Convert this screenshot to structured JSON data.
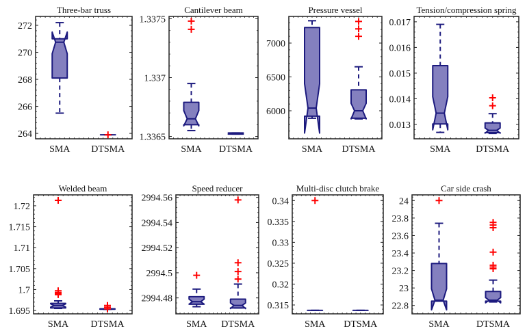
{
  "colors": {
    "box_fill": "#8480bf",
    "box_stroke": "#1c1a7e",
    "outlier": "#ff0000",
    "axis": "#222222"
  },
  "chart_data": [
    {
      "type": "box",
      "title": "Three-bar truss",
      "categories": [
        "SMA",
        "DTSMA"
      ],
      "ylim": [
        263.6,
        272.66
      ],
      "yticks": [
        264,
        266,
        268,
        270,
        272
      ],
      "yticklabels": [
        "264",
        "266",
        "268",
        "270",
        "272"
      ],
      "series": [
        {
          "name": "SMA",
          "whisker_low": 265.5,
          "q1": 268.1,
          "median": 270.75,
          "q3": 271.0,
          "whisker_high": 272.2,
          "notch_low": 269.9,
          "notch_high": 271.5,
          "outliers": []
        },
        {
          "name": "DTSMA",
          "whisker_low": 263.9,
          "q1": 263.9,
          "median": 263.9,
          "q3": 263.9,
          "whisker_high": 263.9,
          "notch_low": 263.9,
          "notch_high": 263.9,
          "outliers": [
            263.9
          ]
        }
      ]
    },
    {
      "type": "box",
      "title": "Cantilever beam",
      "categories": [
        "SMA",
        "DTSMA"
      ],
      "ylim": [
        1.33648,
        1.33752
      ],
      "yticks": [
        1.3365,
        1.337,
        1.3375
      ],
      "yticklabels": [
        "1.3365",
        "1.337",
        "1.3375"
      ],
      "series": [
        {
          "name": "SMA",
          "whisker_low": 1.33655,
          "q1": 1.3366,
          "median": 1.33665,
          "q3": 1.33679,
          "whisker_high": 1.33695,
          "notch_low": 1.33659,
          "notch_high": 1.33672,
          "outliers": [
            1.33748,
            1.33741
          ]
        },
        {
          "name": "DTSMA",
          "whisker_low": 1.33652,
          "q1": 1.33652,
          "median": 1.336525,
          "q3": 1.33653,
          "whisker_high": 1.33653,
          "notch_low": 1.33652,
          "notch_high": 1.33653,
          "outliers": []
        }
      ]
    },
    {
      "type": "box",
      "title": "Pressure vessel",
      "categories": [
        "SMA",
        "DTSMA"
      ],
      "ylim": [
        5586,
        7394
      ],
      "yticks": [
        6000,
        6500,
        7000
      ],
      "yticklabels": [
        "6000",
        "6500",
        "7000"
      ],
      "series": [
        {
          "name": "SMA",
          "whisker_low": 5890,
          "q1": 5920,
          "median": 6040,
          "q3": 7230,
          "whisker_high": 7330,
          "notch_low": 5670,
          "notch_high": 6400,
          "outliers": []
        },
        {
          "name": "DTSMA",
          "whisker_low": 5880,
          "q1": 5890,
          "median": 6000,
          "q3": 6310,
          "whisker_high": 6650,
          "notch_low": 5880,
          "notch_high": 6110,
          "outliers": [
            7320,
            7210,
            7100
          ]
        }
      ]
    },
    {
      "type": "box",
      "title": "Tension/compression spring",
      "categories": [
        "SMA",
        "DTSMA"
      ],
      "ylim": [
        0.01244,
        0.01721
      ],
      "yticks": [
        0.013,
        0.014,
        0.015,
        0.016,
        0.017
      ],
      "yticklabels": [
        "0.013",
        "0.014",
        "0.015",
        "0.016",
        "0.017"
      ],
      "series": [
        {
          "name": "SMA",
          "whisker_low": 0.01269,
          "q1": 0.01302,
          "median": 0.01344,
          "q3": 0.01529,
          "whisker_high": 0.0169,
          "notch_low": 0.01279,
          "notch_high": 0.01408,
          "outliers": []
        },
        {
          "name": "DTSMA",
          "whisker_low": 0.01265,
          "q1": 0.01268,
          "median": 0.01277,
          "q3": 0.01306,
          "whisker_high": 0.01342,
          "notch_low": 0.01266,
          "notch_high": 0.01286,
          "outliers": [
            0.01404,
            0.01373
          ]
        }
      ]
    },
    {
      "type": "box",
      "title": "Welded beam",
      "categories": [
        "SMA",
        "DTSMA"
      ],
      "ylim": [
        1.6942,
        1.7226
      ],
      "yticks": [
        1.695,
        1.7,
        1.705,
        1.71,
        1.715,
        1.72
      ],
      "yticklabels": [
        "1.695",
        "1.7",
        "1.705",
        "1.71",
        "1.715",
        "1.72"
      ],
      "series": [
        {
          "name": "SMA",
          "whisker_low": 1.6955,
          "q1": 1.6956,
          "median": 1.6962,
          "q3": 1.6967,
          "whisker_high": 1.6973,
          "notch_low": 1.6958,
          "notch_high": 1.6966,
          "outliers": [
            1.7213,
            1.6997,
            1.6993,
            1.699,
            1.6988
          ]
        },
        {
          "name": "DTSMA",
          "whisker_low": 1.6953,
          "q1": 1.6953,
          "median": 1.6953,
          "q3": 1.6954,
          "whisker_high": 1.6954,
          "notch_low": 1.6953,
          "notch_high": 1.6954,
          "outliers": [
            1.6962,
            1.6958,
            1.6954
          ]
        }
      ]
    },
    {
      "type": "box",
      "title": "Speed reducer",
      "categories": [
        "SMA",
        "DTSMA"
      ],
      "ylim": [
        2994.4673,
        2994.562
      ],
      "yticks": [
        2994.48,
        2994.5,
        2994.52,
        2994.54,
        2994.56
      ],
      "yticklabels": [
        "2994.48",
        "2994.5",
        "2994.52",
        "2994.54",
        "2994.56"
      ],
      "series": [
        {
          "name": "SMA",
          "whisker_low": 2994.473,
          "q1": 2994.475,
          "median": 2994.477,
          "q3": 2994.481,
          "whisker_high": 2994.487,
          "notch_low": 2994.475,
          "notch_high": 2994.479,
          "outliers": [
            2994.498
          ]
        },
        {
          "name": "DTSMA",
          "whisker_low": 2994.472,
          "q1": 2994.472,
          "median": 2994.474,
          "q3": 2994.479,
          "whisker_high": 2994.491,
          "notch_low": 2994.4715,
          "notch_high": 2994.476,
          "outliers": [
            2994.558,
            2994.508,
            2994.501,
            2994.495
          ]
        }
      ]
    },
    {
      "type": "box",
      "title": "Multi-disc clutch brake",
      "categories": [
        "SMA",
        "DTSMA"
      ],
      "ylim": [
        0.31287,
        0.34136
      ],
      "yticks": [
        0.315,
        0.32,
        0.325,
        0.33,
        0.335,
        0.34
      ],
      "yticklabels": [
        "0.315",
        "0.32",
        "0.325",
        "0.33",
        "0.335",
        "0.34"
      ],
      "series": [
        {
          "name": "SMA",
          "whisker_low": 0.3137,
          "q1": 0.3137,
          "median": 0.3137,
          "q3": 0.3137,
          "whisker_high": 0.3137,
          "notch_low": 0.3137,
          "notch_high": 0.3137,
          "outliers": [
            0.34
          ]
        },
        {
          "name": "DTSMA",
          "whisker_low": 0.3137,
          "q1": 0.3137,
          "median": 0.3137,
          "q3": 0.3137,
          "whisker_high": 0.3137,
          "notch_low": 0.3137,
          "notch_high": 0.3137,
          "outliers": []
        }
      ]
    },
    {
      "type": "box",
      "title": "Car side crash",
      "categories": [
        "SMA",
        "DTSMA"
      ],
      "ylim": [
        22.704,
        24.065
      ],
      "yticks": [
        22.8,
        23,
        23.2,
        23.4,
        23.6,
        23.8,
        24
      ],
      "yticklabels": [
        "22.8",
        "23",
        "23.2",
        "23.4",
        "23.6",
        "23.8",
        "24"
      ],
      "series": [
        {
          "name": "SMA",
          "whisker_low": 22.85,
          "q1": 22.85,
          "median": 22.86,
          "q3": 23.28,
          "whisker_high": 23.74,
          "notch_low": 22.75,
          "notch_high": 22.99,
          "outliers": [
            24.0
          ]
        },
        {
          "name": "DTSMA",
          "whisker_low": 22.84,
          "q1": 22.85,
          "median": 22.86,
          "q3": 22.96,
          "whisker_high": 23.09,
          "notch_low": 22.83,
          "notch_high": 22.89,
          "outliers": [
            23.75,
            23.72,
            23.69,
            23.41,
            23.26,
            23.24,
            23.22
          ]
        }
      ]
    }
  ]
}
